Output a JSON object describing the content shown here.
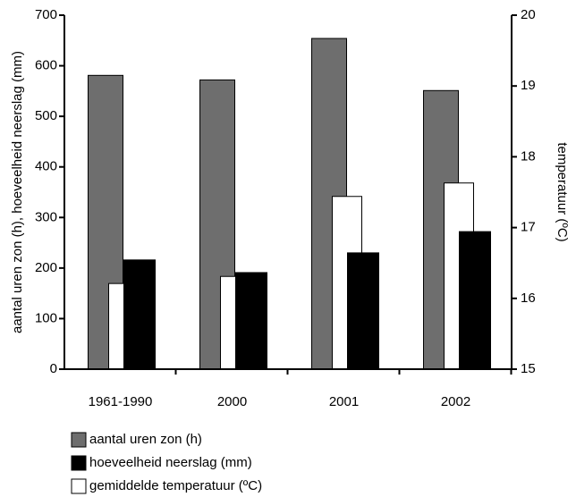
{
  "chart_data": {
    "type": "bar",
    "categories": [
      "1961-1990",
      "2000",
      "2001",
      "2002"
    ],
    "series": [
      {
        "name": "aantal uren zon (h)",
        "color": "#6e6e6e",
        "values": [
          581,
          572,
          654,
          551
        ]
      },
      {
        "name": "hoeveelheid neerslag (mm)",
        "color": "#000000",
        "values": [
          216,
          191,
          230,
          272
        ]
      },
      {
        "name": "gemiddelde temperatuur (ºC)",
        "color": "#ffffff",
        "values": [
          16.21,
          16.31,
          17.44,
          17.63
        ],
        "axis": "y2"
      }
    ],
    "ylabel": "aantal uren zon (h), hoeveelheid neerslag (mm)",
    "y2label": "temperatuur (ºC)",
    "ylim": [
      0,
      700
    ],
    "yticks": [
      0,
      100,
      200,
      300,
      400,
      500,
      600,
      700
    ],
    "y2lim": [
      15,
      20
    ],
    "y2ticks": [
      15,
      16,
      17,
      18,
      19,
      20
    ],
    "legend": "bottom"
  }
}
